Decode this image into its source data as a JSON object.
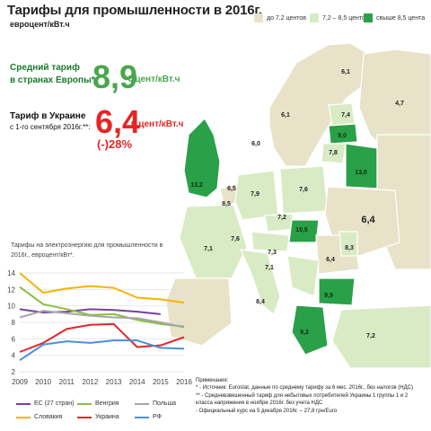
{
  "header": {
    "title": "Тарифы для промышленности в 2016г.",
    "subtitle": "евроцент/кВт.ч"
  },
  "map_legend": [
    {
      "label": "до 7,2 центов",
      "color": "#e8e3c8"
    },
    {
      "label": "7,2 – 8,5 центов",
      "color": "#d9ebc4"
    },
    {
      "label": "свыше 8,5 цента",
      "color": "#2aa048"
    }
  ],
  "eu": {
    "label_line1": "Средний тариф",
    "label_line2": "в странах Европы*:",
    "value": "8,9",
    "unit": "€ цент/кВт.ч"
  },
  "ukraine": {
    "label": "Тариф в Украине",
    "date": "с 1-го сентября 2016г.**:",
    "value": "6,4",
    "unit": "€ цент/кВт.ч",
    "change": "(-)28%"
  },
  "map_values": [
    {
      "value": "6,1",
      "category": 1
    },
    {
      "value": "4,7",
      "category": 1
    },
    {
      "value": "6,1",
      "category": 1
    },
    {
      "value": "7,4",
      "category": 2
    },
    {
      "value": "6,0",
      "category": 1
    },
    {
      "value": "9,0",
      "category": 3
    },
    {
      "value": "7,8",
      "category": 2
    },
    {
      "value": "13,0",
      "category": 3
    },
    {
      "value": "13,2",
      "category": 3
    },
    {
      "value": "6,5",
      "category": 1
    },
    {
      "value": "7,9",
      "category": 2
    },
    {
      "value": "7,6",
      "category": 2
    },
    {
      "value": "8,5",
      "category": 2
    },
    {
      "value": "6,4",
      "category": 1
    },
    {
      "value": "7,2",
      "category": 2
    },
    {
      "value": "10,5",
      "category": 3
    },
    {
      "value": "7,1",
      "category": 1
    },
    {
      "value": "7,6",
      "category": 2
    },
    {
      "value": "7,3",
      "category": 2
    },
    {
      "value": "8,3",
      "category": 2
    },
    {
      "value": "6,4",
      "category": 1
    },
    {
      "value": "7,1",
      "category": 1
    },
    {
      "value": "8,4",
      "category": 2
    },
    {
      "value": "9,9",
      "category": 3
    },
    {
      "value": "9,2",
      "category": 3
    },
    {
      "value": "7,2",
      "category": 2
    }
  ],
  "chart_data": {
    "type": "line",
    "title": "Тарифы на электроэнергию для промышленности в 2016г., евроцент/кВт*.",
    "x": [
      2009,
      2010,
      2011,
      2012,
      2013,
      2014,
      2015,
      2016
    ],
    "ylim": [
      2,
      14
    ],
    "yticks": [
      2,
      4,
      6,
      8,
      10,
      12,
      14
    ],
    "grid": true,
    "legend_position": "bottom",
    "series": [
      {
        "name": "ЕС (27 стран)",
        "color": "#7b3fa0",
        "values": [
          9.6,
          9.2,
          9.3,
          9.6,
          9.5,
          9.3,
          9.0,
          null
        ]
      },
      {
        "name": "Венгрия",
        "color": "#8cbf3f",
        "values": [
          12.3,
          10.2,
          9.6,
          8.9,
          9.0,
          8.3,
          7.8,
          7.5
        ]
      },
      {
        "name": "Польша",
        "color": "#a6a6a6",
        "values": [
          8.6,
          9.4,
          9.1,
          8.8,
          8.6,
          8.5,
          8.0,
          7.4
        ]
      },
      {
        "name": "Словакия",
        "color": "#f4b400",
        "values": [
          14.0,
          11.6,
          12.1,
          12.4,
          12.2,
          11.0,
          10.8,
          10.4
        ]
      },
      {
        "name": "Украина",
        "color": "#e32726",
        "values": [
          4.4,
          5.5,
          7.2,
          7.7,
          7.8,
          5.0,
          5.2,
          6.2
        ]
      },
      {
        "name": "РФ",
        "color": "#4a90d9",
        "values": [
          3.4,
          5.3,
          5.7,
          5.5,
          5.8,
          5.8,
          4.9,
          4.8
        ]
      }
    ]
  },
  "notes": {
    "heading": "Примечания:",
    "lines": [
      "*   -   Источник: Eurostat, данные по среднему тарифу за 6 мес. 2016г., без налогов (НДС)",
      "**  -   Средневзвешенный тариф для небытовых потребителей Украины 1 группы 1 и 2",
      "         класса напряжения в ноябре 2016г. без учета НДС",
      "    -   Официальный курс на 5 декабря 2016г. – 27,8 грн/Euro"
    ]
  }
}
